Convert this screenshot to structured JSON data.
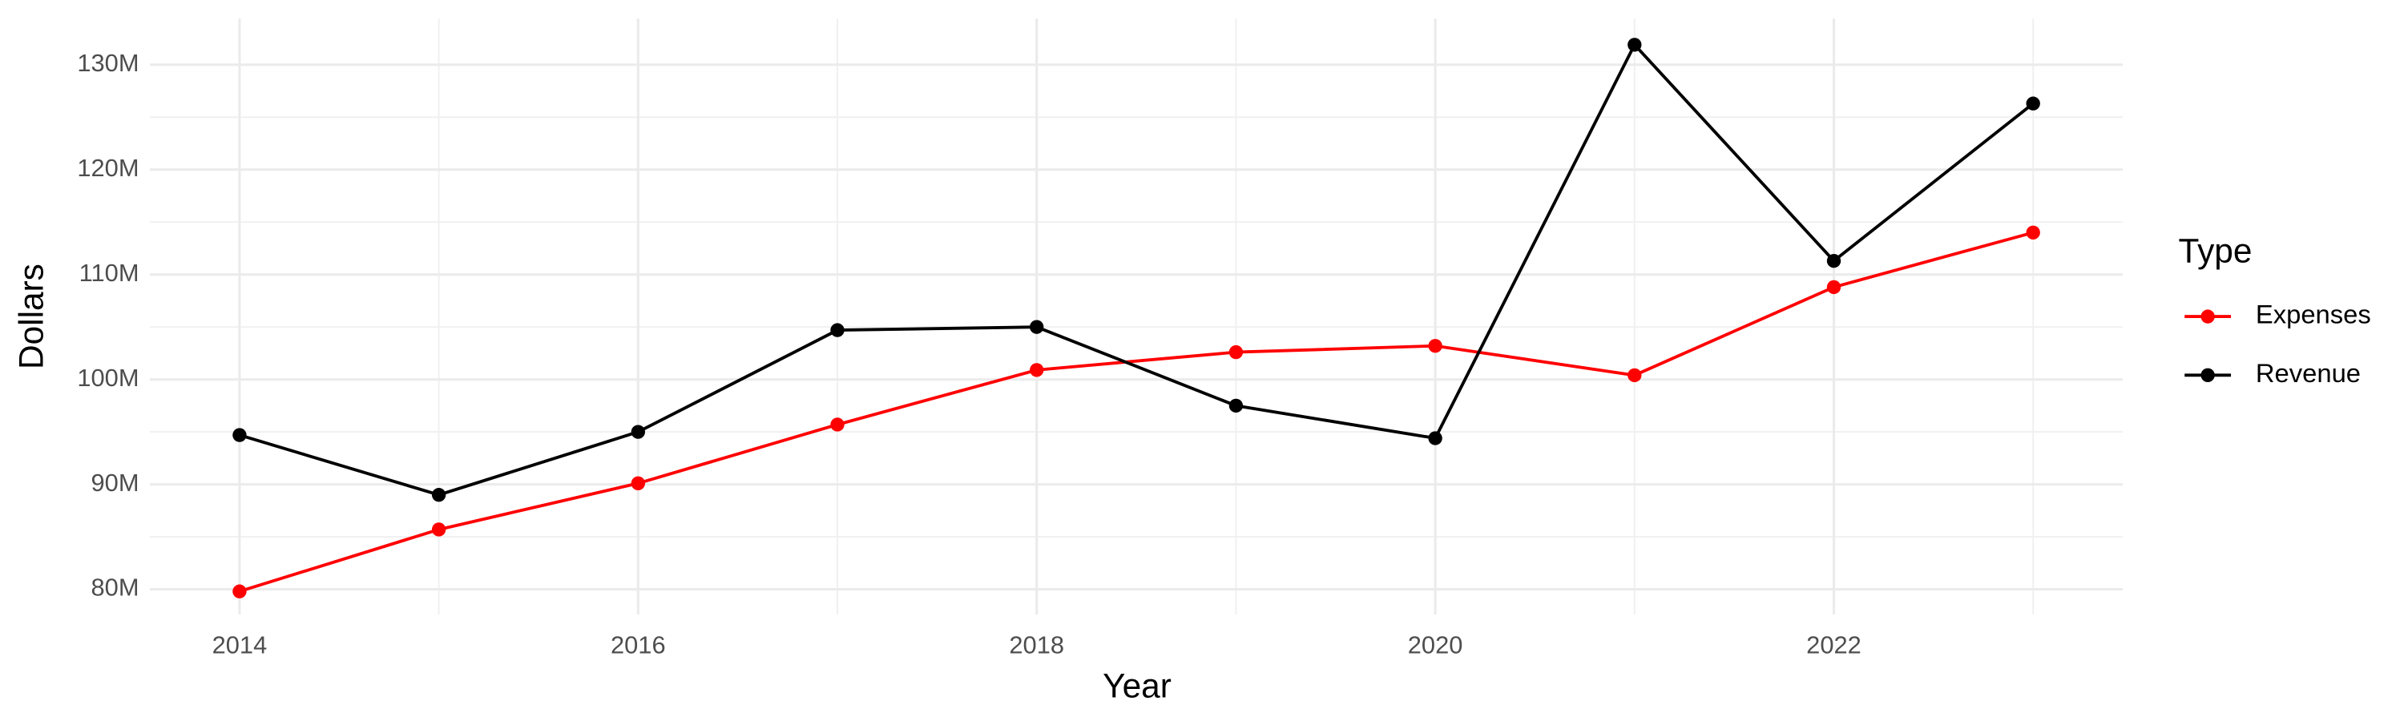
{
  "chart_data": {
    "type": "line",
    "x_label": "Year",
    "y_label": "Dollars",
    "legend_title": "Type",
    "legend": "right",
    "grid": true,
    "x": [
      2014,
      2015,
      2016,
      2017,
      2018,
      2019,
      2020,
      2021,
      2022,
      2023
    ],
    "series": [
      {
        "name": "Expenses",
        "color": "#ff0000",
        "values": [
          79800000,
          85700000,
          90100000,
          95700000,
          100900000,
          102600000,
          103200000,
          100400000,
          108800000,
          114000000
        ]
      },
      {
        "name": "Revenue",
        "color": "#000000",
        "values": [
          94700000,
          89000000,
          95000000,
          104700000,
          105000000,
          97500000,
          94400000,
          131900000,
          111300000,
          126300000
        ]
      }
    ],
    "xlim": [
      2013.55,
      2023.45
    ],
    "xticks": [
      2014,
      2016,
      2018,
      2020,
      2022
    ],
    "ylim": [
      77600000,
      134400000
    ],
    "yticks": [
      {
        "value": 80000000,
        "label": "80M"
      },
      {
        "value": 90000000,
        "label": "90M"
      },
      {
        "value": 100000000,
        "label": "100M"
      },
      {
        "value": 110000000,
        "label": "110M"
      },
      {
        "value": 120000000,
        "label": "120M"
      },
      {
        "value": 130000000,
        "label": "130M"
      }
    ]
  }
}
